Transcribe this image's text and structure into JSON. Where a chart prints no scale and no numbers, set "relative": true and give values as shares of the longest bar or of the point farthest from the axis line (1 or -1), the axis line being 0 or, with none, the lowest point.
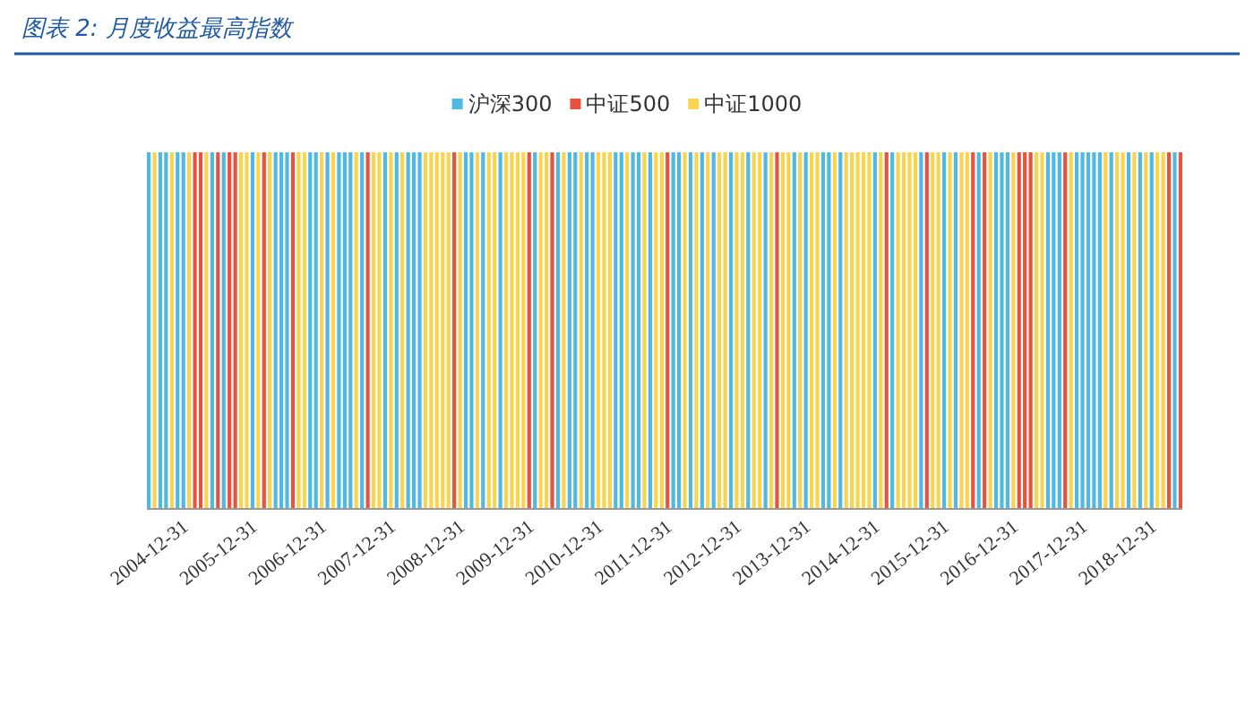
{
  "chart_data": {
    "type": "bar",
    "title": "图表 2: 月度收益最高指数",
    "relative": true,
    "legend": "top",
    "grid": false,
    "categories": [
      "2004-12-31",
      null,
      null,
      null,
      null,
      null,
      null,
      null,
      null,
      null,
      null,
      null,
      "2005-12-31",
      null,
      null,
      null,
      null,
      null,
      null,
      null,
      null,
      null,
      null,
      null,
      "2006-12-31",
      null,
      null,
      null,
      null,
      null,
      null,
      null,
      null,
      null,
      null,
      null,
      "2007-12-31",
      null,
      null,
      null,
      null,
      null,
      null,
      null,
      null,
      null,
      null,
      null,
      "2008-12-31",
      null,
      null,
      null,
      null,
      null,
      null,
      null,
      null,
      null,
      null,
      null,
      "2009-12-31",
      null,
      null,
      null,
      null,
      null,
      null,
      null,
      null,
      null,
      null,
      null,
      "2010-12-31",
      null,
      null,
      null,
      null,
      null,
      null,
      null,
      null,
      null,
      null,
      null,
      "2011-12-31",
      null,
      null,
      null,
      null,
      null,
      null,
      null,
      null,
      null,
      null,
      null,
      "2012-12-31",
      null,
      null,
      null,
      null,
      null,
      null,
      null,
      null,
      null,
      null,
      null,
      "2013-12-31",
      null,
      null,
      null,
      null,
      null,
      null,
      null,
      null,
      null,
      null,
      null,
      "2014-12-31",
      null,
      null,
      null,
      null,
      null,
      null,
      null,
      null,
      null,
      null,
      null,
      "2015-12-31",
      null,
      null,
      null,
      null,
      null,
      null,
      null,
      null,
      null,
      null,
      null,
      "2016-12-31",
      null,
      null,
      null,
      null,
      null,
      null,
      null,
      null,
      null,
      null,
      null,
      "2017-12-31",
      null,
      null,
      null,
      null,
      null,
      null,
      null,
      null,
      null,
      null,
      null,
      "2018-12-31",
      null,
      null,
      null,
      null,
      null,
      null,
      null,
      null,
      null,
      null,
      null
    ],
    "series": [
      {
        "name": "沪深300",
        "color": "#4fb8e3",
        "values": [
          1,
          null,
          1,
          1,
          null,
          1,
          1,
          null,
          null,
          null,
          null,
          1,
          null,
          1,
          null,
          null,
          null,
          null,
          1,
          null,
          null,
          null,
          1,
          1,
          1,
          null,
          null,
          null,
          1,
          1,
          null,
          1,
          null,
          1,
          1,
          1,
          null,
          1,
          null,
          null,
          null,
          1,
          null,
          1,
          null,
          1,
          1,
          1,
          null,
          null,
          null,
          null,
          null,
          null,
          null,
          1,
          1,
          null,
          1,
          null,
          null,
          1,
          null,
          null,
          null,
          null,
          null,
          1,
          null,
          null,
          null,
          1,
          null,
          1,
          1,
          null,
          1,
          1,
          null,
          null,
          null,
          1,
          1,
          null,
          1,
          1,
          null,
          1,
          null,
          null,
          null,
          1,
          1,
          null,
          1,
          null,
          1,
          null,
          1,
          null,
          null,
          1,
          null,
          null,
          1,
          null,
          null,
          1,
          null,
          null,
          null,
          null,
          1,
          null,
          1,
          null,
          null,
          1,
          1,
          null,
          1,
          null,
          null,
          null,
          null,
          null,
          1,
          null,
          null,
          1,
          null,
          null,
          null,
          null,
          1,
          null,
          null,
          null,
          1,
          null,
          1,
          null,
          null,
          null,
          1,
          null,
          null,
          1,
          1,
          1,
          null,
          null,
          null,
          null,
          null,
          null,
          1,
          1,
          1,
          null,
          null,
          1,
          1,
          1,
          1,
          1,
          null,
          1,
          null,
          null,
          1,
          null,
          1,
          null,
          1,
          null,
          null,
          null,
          1,
          null
        ]
      },
      {
        "name": "中证500",
        "color": "#e8533f",
        "values": [
          null,
          null,
          null,
          null,
          null,
          null,
          null,
          null,
          1,
          1,
          null,
          null,
          1,
          null,
          1,
          1,
          null,
          null,
          null,
          null,
          1,
          null,
          null,
          null,
          null,
          1,
          null,
          null,
          null,
          null,
          null,
          null,
          null,
          null,
          null,
          null,
          null,
          null,
          1,
          null,
          null,
          null,
          null,
          null,
          null,
          null,
          null,
          null,
          null,
          null,
          null,
          null,
          null,
          1,
          null,
          null,
          null,
          null,
          null,
          null,
          null,
          null,
          null,
          null,
          null,
          null,
          1,
          null,
          null,
          null,
          1,
          null,
          null,
          null,
          null,
          null,
          null,
          null,
          null,
          null,
          null,
          null,
          null,
          null,
          null,
          null,
          null,
          null,
          null,
          null,
          1,
          null,
          null,
          null,
          null,
          null,
          null,
          null,
          null,
          null,
          null,
          null,
          null,
          null,
          null,
          null,
          null,
          null,
          null,
          1,
          null,
          null,
          null,
          null,
          null,
          null,
          null,
          null,
          null,
          null,
          null,
          null,
          null,
          null,
          null,
          null,
          null,
          null,
          1,
          null,
          null,
          null,
          null,
          null,
          null,
          1,
          null,
          null,
          null,
          null,
          null,
          null,
          null,
          1,
          null,
          1,
          null,
          null,
          null,
          null,
          null,
          1,
          1,
          1,
          null,
          null,
          null,
          null,
          null,
          1,
          null,
          null,
          null,
          null,
          null,
          null,
          null,
          null,
          null,
          null,
          null,
          null,
          null,
          null,
          null,
          null,
          null,
          1,
          null,
          1
        ]
      },
      {
        "name": "中证1000",
        "color": "#f9d44e",
        "values": [
          null,
          1,
          null,
          null,
          1,
          null,
          null,
          1,
          null,
          null,
          1,
          null,
          null,
          null,
          null,
          null,
          1,
          1,
          null,
          1,
          null,
          1,
          null,
          null,
          null,
          null,
          1,
          1,
          null,
          null,
          1,
          null,
          1,
          null,
          null,
          null,
          1,
          null,
          null,
          1,
          1,
          null,
          1,
          null,
          1,
          null,
          null,
          null,
          1,
          1,
          1,
          1,
          1,
          null,
          1,
          null,
          null,
          1,
          null,
          1,
          1,
          null,
          1,
          1,
          1,
          1,
          null,
          null,
          1,
          1,
          null,
          null,
          1,
          null,
          null,
          1,
          null,
          null,
          1,
          1,
          1,
          null,
          null,
          1,
          null,
          null,
          1,
          null,
          1,
          1,
          null,
          null,
          null,
          1,
          null,
          1,
          null,
          1,
          null,
          1,
          1,
          null,
          1,
          1,
          null,
          1,
          1,
          null,
          1,
          null,
          1,
          1,
          null,
          1,
          null,
          1,
          1,
          null,
          null,
          1,
          null,
          1,
          1,
          1,
          1,
          1,
          null,
          1,
          null,
          null,
          1,
          1,
          1,
          1,
          null,
          null,
          1,
          1,
          null,
          1,
          null,
          1,
          1,
          null,
          null,
          null,
          1,
          null,
          null,
          null,
          1,
          null,
          null,
          null,
          1,
          1,
          null,
          null,
          null,
          null,
          1,
          null,
          null,
          null,
          null,
          null,
          1,
          null,
          1,
          1,
          null,
          1,
          null,
          1,
          null,
          1,
          1,
          null,
          null,
          null
        ]
      }
    ]
  }
}
